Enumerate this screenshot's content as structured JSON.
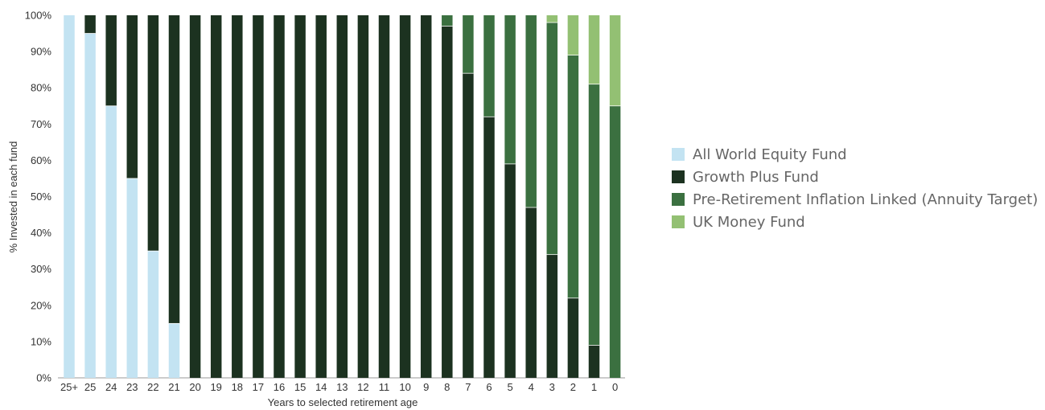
{
  "chart_data": {
    "type": "bar",
    "stacked": true,
    "xlabel": "Years to selected retirement age",
    "ylabel": "% Invested in each fund",
    "ylim": [
      0,
      100
    ],
    "yticks": [
      "0%",
      "10%",
      "20%",
      "30%",
      "40%",
      "50%",
      "60%",
      "70%",
      "80%",
      "90%",
      "100%"
    ],
    "categories": [
      "25+",
      "25",
      "24",
      "23",
      "22",
      "21",
      "20",
      "19",
      "18",
      "17",
      "16",
      "15",
      "14",
      "13",
      "12",
      "11",
      "10",
      "9",
      "8",
      "7",
      "6",
      "5",
      "4",
      "3",
      "2",
      "1",
      "0"
    ],
    "legend_position": "right",
    "grid": false,
    "series": [
      {
        "name": "All World Equity Fund",
        "color": "#c3e3f2",
        "values": [
          100,
          95,
          75,
          55,
          35,
          15,
          0,
          0,
          0,
          0,
          0,
          0,
          0,
          0,
          0,
          0,
          0,
          0,
          0,
          0,
          0,
          0,
          0,
          0,
          0,
          0,
          0
        ]
      },
      {
        "name": "Growth Plus Fund",
        "color": "#1c3220",
        "values": [
          0,
          5,
          25,
          45,
          65,
          85,
          100,
          100,
          100,
          100,
          100,
          100,
          100,
          100,
          100,
          100,
          100,
          100,
          97,
          84,
          72,
          59,
          47,
          34,
          22,
          9,
          0
        ]
      },
      {
        "name": "Pre-Retirement Inflation Linked (Annuity Target)",
        "color": "#3b7040",
        "values": [
          0,
          0,
          0,
          0,
          0,
          0,
          0,
          0,
          0,
          0,
          0,
          0,
          0,
          0,
          0,
          0,
          0,
          0,
          3,
          16,
          28,
          41,
          53,
          64,
          67,
          72,
          75
        ]
      },
      {
        "name": "UK Money Fund",
        "color": "#93c073",
        "values": [
          0,
          0,
          0,
          0,
          0,
          0,
          0,
          0,
          0,
          0,
          0,
          0,
          0,
          0,
          0,
          0,
          0,
          0,
          0,
          0,
          0,
          0,
          0,
          2,
          11,
          19,
          25
        ]
      }
    ]
  }
}
